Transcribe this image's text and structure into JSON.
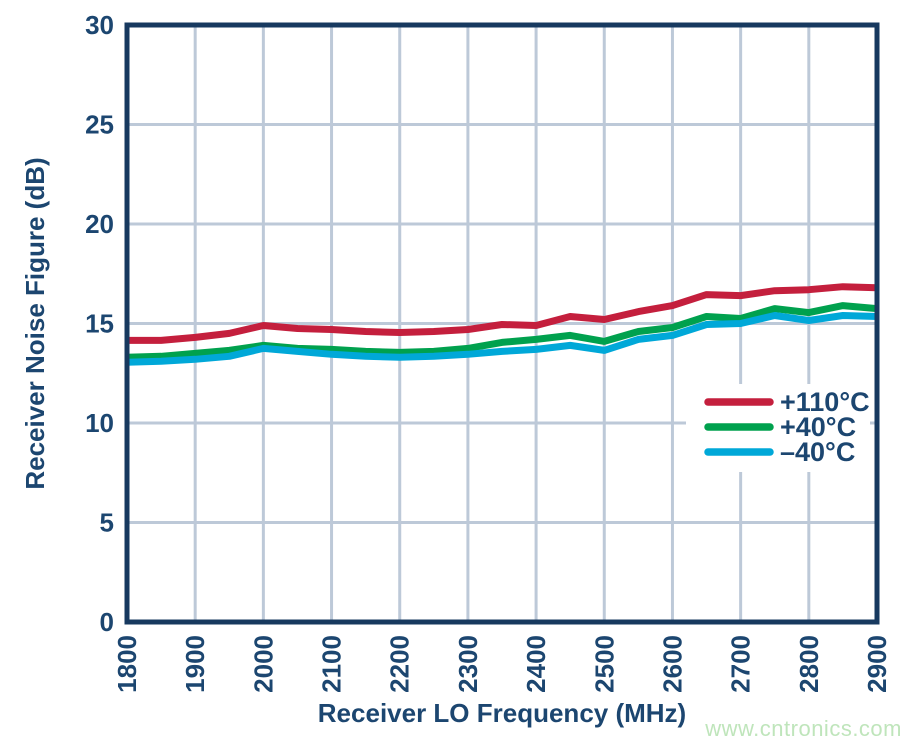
{
  "chart_data": {
    "type": "line",
    "title": "",
    "xlabel": "Receiver LO Frequency (MHz)",
    "ylabel": "Receiver Noise Figure (dB)",
    "xlim": [
      1800,
      2900
    ],
    "ylim": [
      0,
      30
    ],
    "x_ticks": [
      1800,
      1900,
      2000,
      2100,
      2200,
      2300,
      2400,
      2500,
      2600,
      2700,
      2800,
      2900
    ],
    "y_ticks": [
      0,
      5,
      10,
      15,
      20,
      25,
      30
    ],
    "grid": true,
    "legend_position": "middle-right",
    "x": [
      1800,
      1850,
      1900,
      1950,
      2000,
      2050,
      2100,
      2150,
      2200,
      2250,
      2300,
      2350,
      2400,
      2450,
      2500,
      2550,
      2600,
      2650,
      2700,
      2750,
      2800,
      2850,
      2900
    ],
    "series": [
      {
        "name": "+110°C",
        "color": "#c41f3d",
        "values": [
          14.15,
          14.15,
          14.3,
          14.5,
          14.9,
          14.75,
          14.7,
          14.6,
          14.55,
          14.6,
          14.7,
          14.95,
          14.9,
          15.35,
          15.2,
          15.6,
          15.9,
          16.45,
          16.4,
          16.65,
          16.7,
          16.85,
          16.8
        ]
      },
      {
        "name": "+40°C",
        "color": "#00a14e",
        "values": [
          13.3,
          13.35,
          13.5,
          13.65,
          13.9,
          13.75,
          13.7,
          13.6,
          13.55,
          13.6,
          13.75,
          14.05,
          14.2,
          14.4,
          14.1,
          14.6,
          14.8,
          15.35,
          15.25,
          15.75,
          15.55,
          15.9,
          15.75
        ]
      },
      {
        "name": "–40°C",
        "color": "#00a8d8",
        "values": [
          13.05,
          13.1,
          13.2,
          13.35,
          13.75,
          13.6,
          13.45,
          13.35,
          13.3,
          13.35,
          13.45,
          13.6,
          13.7,
          13.9,
          13.65,
          14.2,
          14.4,
          14.95,
          15.0,
          15.4,
          15.15,
          15.4,
          15.35
        ]
      }
    ]
  },
  "watermark": "www.cntronics.com",
  "colors": {
    "axis_frame": "#17395f",
    "grid": "#bdc9d8",
    "text": "#1c4670",
    "watermark": "#bfe5bb",
    "background": "#ffffff"
  }
}
